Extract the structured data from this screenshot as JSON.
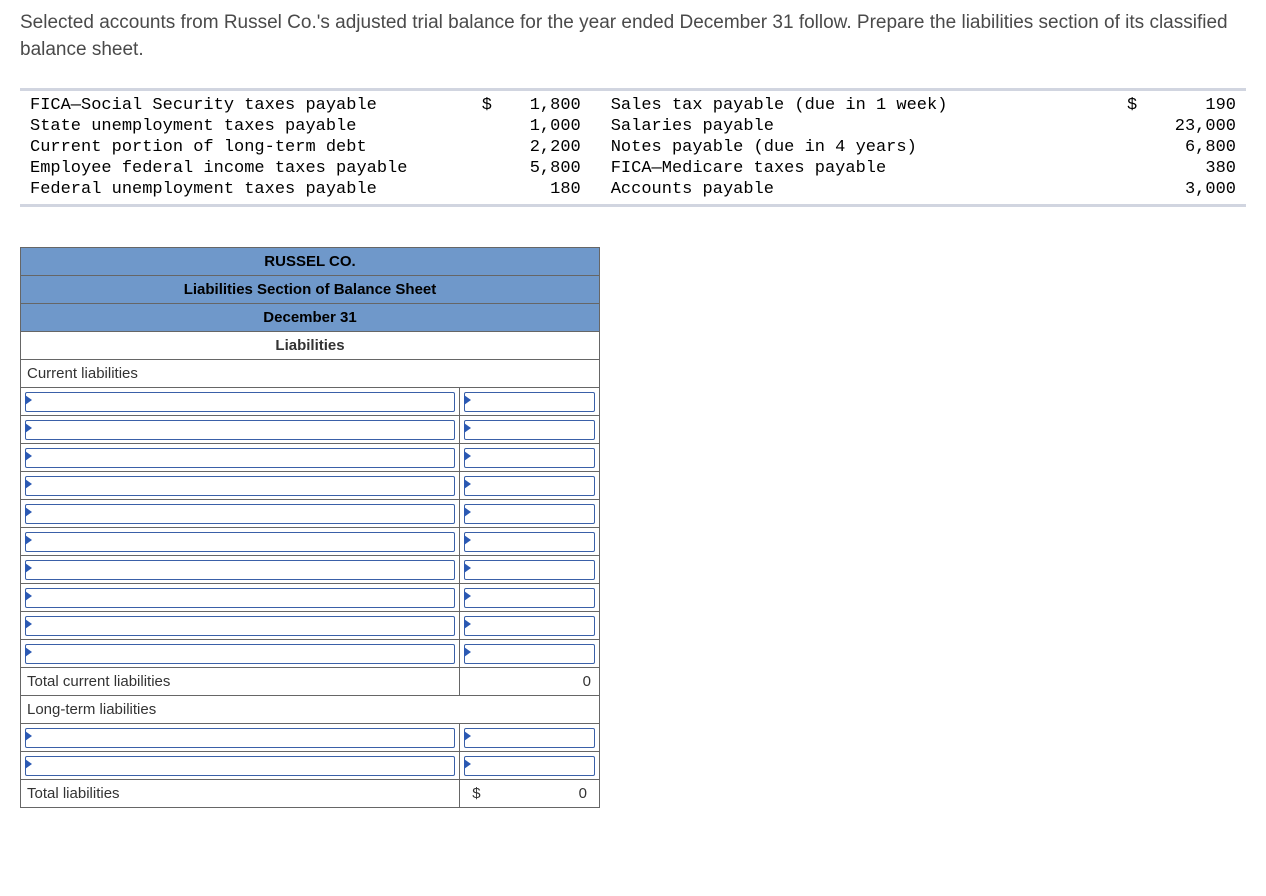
{
  "question_text": "Selected accounts from Russel Co.'s adjusted trial balance for the year ended December 31 follow. Prepare the liabilities section of its classified balance sheet.",
  "trial_balance": {
    "font": "monospace",
    "rows": [
      {
        "l_acct": "FICA—Social Security taxes payable",
        "l_dollar": "$",
        "l_amt": "1,800",
        "r_acct": "Sales tax payable (due in 1 week)",
        "r_dollar": "$",
        "r_amt": "190"
      },
      {
        "l_acct": "State unemployment taxes payable",
        "l_dollar": "",
        "l_amt": "1,000",
        "r_acct": "Salaries payable",
        "r_dollar": "",
        "r_amt": "23,000"
      },
      {
        "l_acct": "Current portion of long-term debt",
        "l_dollar": "",
        "l_amt": "2,200",
        "r_acct": "Notes payable (due in 4 years)",
        "r_dollar": "",
        "r_amt": "6,800"
      },
      {
        "l_acct": "Employee federal income taxes payable",
        "l_dollar": "",
        "l_amt": "5,800",
        "r_acct": "FICA—Medicare taxes payable",
        "r_dollar": "",
        "r_amt": "380"
      },
      {
        "l_acct": "Federal unemployment taxes payable",
        "l_dollar": "",
        "l_amt": "180",
        "r_acct": "Accounts payable",
        "r_dollar": "",
        "r_amt": "3,000"
      }
    ]
  },
  "worksheet": {
    "header_bg": "#6f98ca",
    "border_color": "#666666",
    "input_border": "#3a60a8",
    "title1": "RUSSEL CO.",
    "title2": "Liabilities Section of Balance Sheet",
    "title3": "December 31",
    "section_title": "Liabilities",
    "current_liab_label": "Current liabilities",
    "current_input_rows": 10,
    "total_current_label": "Total current liabilities",
    "total_current_value": "0",
    "longterm_label": "Long-term liabilities",
    "longterm_input_rows": 2,
    "total_liab_label": "Total liabilities",
    "total_liab_symbol": "$",
    "total_liab_value": "0"
  }
}
